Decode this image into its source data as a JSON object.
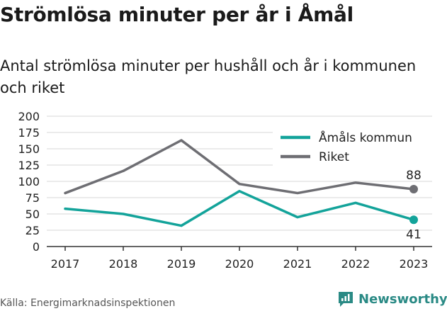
{
  "title": "Strömlösa minuter per år i Åmål",
  "subtitle": "Antal strömlösa minuter per hushåll och år i kommunen och riket",
  "source": "Källa: Energimarknadsinspektionen",
  "brand": "Newsworthy",
  "colors": {
    "amal": "#13a39a",
    "riket": "#6e6e73",
    "grid": "#d7d7d7",
    "axis": "#333333",
    "brand": "#2a8a85"
  },
  "chart_data": {
    "type": "line",
    "title": "Strömlösa minuter per år i Åmål",
    "subtitle": "Antal strömlösa minuter per hushåll och år i kommunen och riket",
    "x": [
      "2017",
      "2018",
      "2019",
      "2020",
      "2021",
      "2022",
      "2023"
    ],
    "ylim": [
      0,
      200
    ],
    "yticks": [
      0,
      25,
      50,
      75,
      100,
      125,
      150,
      175,
      200
    ],
    "grid": true,
    "legend": "top-right",
    "series": [
      {
        "name": "Åmåls kommun",
        "key": "amal",
        "values": [
          58,
          50,
          32,
          85,
          45,
          67,
          41
        ],
        "end_label": "41"
      },
      {
        "name": "Riket",
        "key": "riket",
        "values": [
          82,
          116,
          163,
          96,
          82,
          98,
          88
        ],
        "end_label": "88"
      }
    ]
  }
}
